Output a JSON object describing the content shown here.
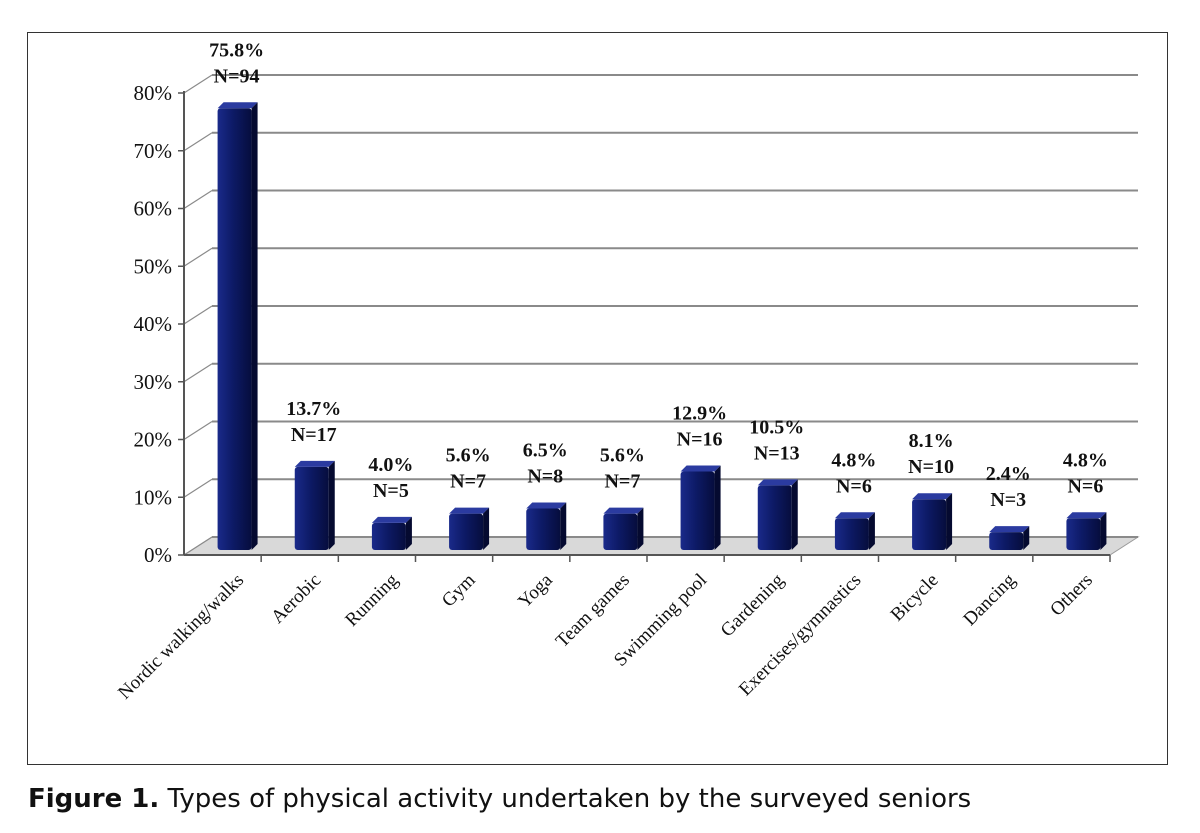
{
  "caption": {
    "label": "Figure 1.",
    "text": " Types of physical activity undertaken by the surveyed seniors"
  },
  "chart_data": {
    "type": "bar",
    "categories": [
      "Nordic walking/walks",
      "Aerobic",
      "Running",
      "Gym",
      "Yoga",
      "Team games",
      "Swimming pool",
      "Gardening",
      "Exercises/gymnastics",
      "Bicycle",
      "Dancing",
      "Others"
    ],
    "values": [
      75.8,
      13.7,
      4.0,
      5.6,
      6.5,
      5.6,
      12.9,
      10.5,
      4.8,
      8.1,
      2.4,
      4.8
    ],
    "value_labels": [
      "75.8%",
      "13.7%",
      "4.0%",
      "5.6%",
      "6.5%",
      "5.6%",
      "12.9%",
      "10.5%",
      "4.8%",
      "8.1%",
      "2.4%",
      "4.8%"
    ],
    "count_labels": [
      "N=94",
      "N=17",
      "N=5",
      "N=7",
      "N=8",
      "N=7",
      "N=16",
      "N=13",
      "N=6",
      "N=10",
      "N=3",
      "N=6"
    ],
    "yticks": [
      "0%",
      "10%",
      "20%",
      "30%",
      "40%",
      "50%",
      "60%",
      "70%",
      "80%"
    ],
    "ylim": [
      0,
      80
    ],
    "grid": true,
    "bar_color": "#0d1a66",
    "title": "",
    "xlabel": "",
    "ylabel": ""
  }
}
